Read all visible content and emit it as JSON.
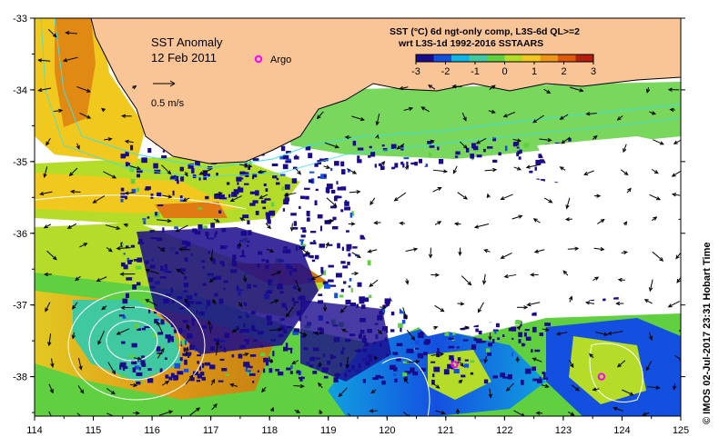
{
  "map": {
    "title": "SST Anomaly",
    "date": "12 Feb 2011",
    "argo_label": "Argo",
    "velocity_scale_label": "0.5 m/s",
    "product_line1": "SST (°C) 6d ngt-only comp, L3S-6d QL>=2",
    "product_line2": "wrt L3S-1d 1992-2016 SSTAARS",
    "credit": "© IMOS 02-Jul-2017 23:31 Hobart Time",
    "colorbar": {
      "ticks": [
        "-3",
        "-2",
        "-1",
        "0",
        "1",
        "2",
        "3"
      ],
      "values": [
        -3,
        -2,
        -1,
        0,
        1,
        2,
        3
      ],
      "colors": [
        "#1a0a8c",
        "#1450e0",
        "#10b4e6",
        "#40c8a0",
        "#60d040",
        "#b4dc28",
        "#f0c81e",
        "#f09614",
        "#e05a0a",
        "#b41e0a"
      ]
    },
    "x_axis": {
      "ticks": [
        "114",
        "115",
        "116",
        "117",
        "118",
        "119",
        "120",
        "121",
        "122",
        "123",
        "124",
        "125"
      ],
      "values": [
        114,
        115,
        116,
        117,
        118,
        119,
        120,
        121,
        122,
        123,
        124,
        125
      ]
    },
    "y_axis": {
      "ticks": [
        "-33",
        "-34",
        "-35",
        "-36",
        "-37",
        "-38"
      ],
      "values": [
        -33,
        -34,
        -35,
        -36,
        -37,
        -38
      ]
    },
    "extent": {
      "lon": [
        114,
        125
      ],
      "lat": [
        -38.55,
        -33
      ]
    },
    "argo_floats": [
      {
        "lon": 121.15,
        "lat": -37.83
      },
      {
        "lon": 123.65,
        "lat": -38.0
      }
    ],
    "colors": {
      "land": "#f9c596",
      "no_data": "#ffffff",
      "argo": "#ff00ff",
      "coast": "#000000",
      "contour": "#ffffff",
      "shelf": "#40e0e0"
    }
  }
}
